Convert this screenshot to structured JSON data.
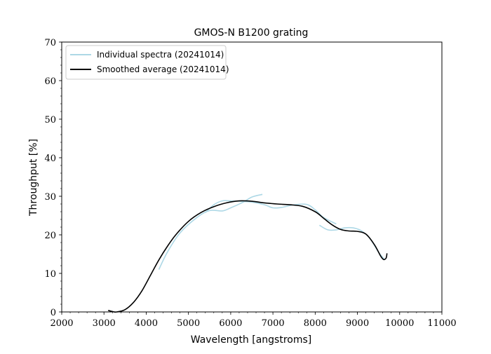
{
  "chart_data": {
    "type": "line",
    "title": "GMOS-N B1200 grating",
    "xlabel": "Wavelength [angstroms]",
    "ylabel": "Throughput [%]",
    "xlim": [
      2000,
      11000
    ],
    "ylim": [
      0,
      70
    ],
    "x_ticks": [
      2000,
      3000,
      4000,
      5000,
      6000,
      7000,
      8000,
      9000,
      10000,
      11000
    ],
    "y_ticks": [
      0,
      10,
      20,
      30,
      40,
      50,
      60,
      70
    ],
    "grid": false,
    "legend_position": "top-left",
    "series": [
      {
        "name": "Individual spectra (20241014)",
        "color": "#add8e6",
        "segments": [
          [
            [
              4300,
              11.0
            ],
            [
              4500,
              15.5
            ],
            [
              4800,
              20.5
            ],
            [
              5200,
              24.5
            ],
            [
              5500,
              26.3
            ],
            [
              5800,
              26.2
            ],
            [
              6000,
              27.0
            ],
            [
              6300,
              28.5
            ],
            [
              6500,
              29.8
            ],
            [
              6750,
              30.5
            ]
          ],
          [
            [
              5400,
              25.8
            ],
            [
              5600,
              27.8
            ],
            [
              5800,
              28.8
            ],
            [
              6000,
              28.8
            ],
            [
              6200,
              28.7
            ],
            [
              6500,
              28.5
            ],
            [
              6800,
              27.8
            ],
            [
              7000,
              27.0
            ],
            [
              7200,
              27.1
            ],
            [
              7500,
              27.8
            ],
            [
              7800,
              27.9
            ],
            [
              8000,
              26.5
            ],
            [
              8200,
              24.5
            ],
            [
              8500,
              22.8
            ]
          ],
          [
            [
              8100,
              22.5
            ],
            [
              8300,
              21.3
            ],
            [
              8500,
              21.3
            ],
            [
              8700,
              21.8
            ],
            [
              8900,
              21.8
            ],
            [
              9100,
              21.0
            ],
            [
              9300,
              19.0
            ],
            [
              9500,
              15.5
            ],
            [
              9650,
              13.5
            ]
          ]
        ]
      },
      {
        "name": "Smoothed average (20241014)",
        "color": "#000000",
        "points": [
          [
            3100,
            0.4
          ],
          [
            3200,
            0.1
          ],
          [
            3300,
            0.0
          ],
          [
            3500,
            0.6
          ],
          [
            3700,
            2.5
          ],
          [
            3900,
            5.5
          ],
          [
            4100,
            9.5
          ],
          [
            4300,
            13.5
          ],
          [
            4500,
            17.0
          ],
          [
            4700,
            20.0
          ],
          [
            5000,
            23.5
          ],
          [
            5300,
            25.8
          ],
          [
            5600,
            27.3
          ],
          [
            5900,
            28.3
          ],
          [
            6200,
            28.8
          ],
          [
            6500,
            28.7
          ],
          [
            6800,
            28.3
          ],
          [
            7100,
            28.0
          ],
          [
            7400,
            27.8
          ],
          [
            7700,
            27.4
          ],
          [
            8000,
            26.0
          ],
          [
            8200,
            24.3
          ],
          [
            8400,
            22.6
          ],
          [
            8600,
            21.4
          ],
          [
            8800,
            21.0
          ],
          [
            9000,
            20.9
          ],
          [
            9200,
            20.2
          ],
          [
            9400,
            17.5
          ],
          [
            9550,
            14.5
          ],
          [
            9620,
            13.6
          ],
          [
            9680,
            14.0
          ],
          [
            9700,
            15.2
          ]
        ]
      }
    ]
  }
}
